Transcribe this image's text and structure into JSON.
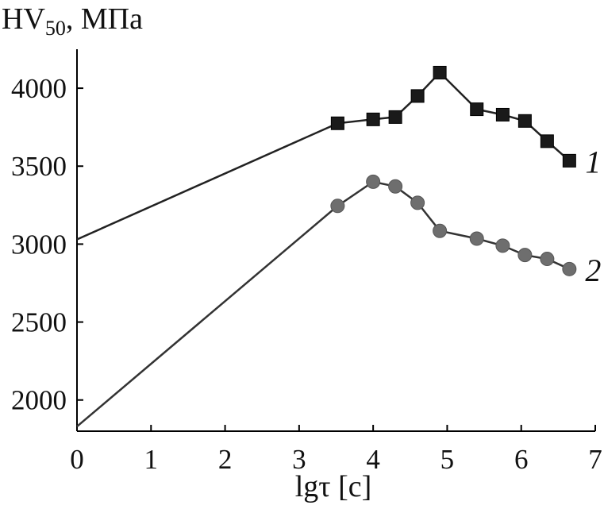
{
  "chart_data": {
    "type": "line",
    "ylabel": {
      "main": "HV",
      "sub": "50",
      "unit": ", МПа"
    },
    "xlabel": "lgτ [c]",
    "xlim": [
      0,
      7
    ],
    "ylim": [
      1800,
      4250
    ],
    "xticks": [
      0,
      1,
      2,
      3,
      4,
      5,
      6,
      7
    ],
    "yticks": [
      2000,
      2500,
      3000,
      3500,
      4000
    ],
    "grid": false,
    "series": [
      {
        "name": "1",
        "marker": "square",
        "color": "#1a1a1a",
        "line_color": "#222222",
        "points": [
          {
            "x": 0,
            "y": 3030,
            "marker": false
          },
          {
            "x": 3.52,
            "y": 3775,
            "marker": true
          },
          {
            "x": 4.0,
            "y": 3800,
            "marker": true
          },
          {
            "x": 4.3,
            "y": 3815,
            "marker": true
          },
          {
            "x": 4.6,
            "y": 3950,
            "marker": true
          },
          {
            "x": 4.9,
            "y": 4100,
            "marker": true
          },
          {
            "x": 5.4,
            "y": 3865,
            "marker": true
          },
          {
            "x": 5.75,
            "y": 3830,
            "marker": true
          },
          {
            "x": 6.05,
            "y": 3790,
            "marker": true
          },
          {
            "x": 6.35,
            "y": 3660,
            "marker": true
          },
          {
            "x": 6.65,
            "y": 3535,
            "marker": true
          }
        ]
      },
      {
        "name": "2",
        "marker": "circle",
        "color": "#6e6e6e",
        "line_color": "#333333",
        "points": [
          {
            "x": 0,
            "y": 1830,
            "marker": false
          },
          {
            "x": 3.52,
            "y": 3245,
            "marker": true
          },
          {
            "x": 4.0,
            "y": 3400,
            "marker": true
          },
          {
            "x": 4.3,
            "y": 3370,
            "marker": true
          },
          {
            "x": 4.6,
            "y": 3265,
            "marker": true
          },
          {
            "x": 4.9,
            "y": 3085,
            "marker": true
          },
          {
            "x": 5.4,
            "y": 3035,
            "marker": true
          },
          {
            "x": 5.75,
            "y": 2990,
            "marker": true
          },
          {
            "x": 6.05,
            "y": 2930,
            "marker": true
          },
          {
            "x": 6.35,
            "y": 2905,
            "marker": true
          },
          {
            "x": 6.65,
            "y": 2840,
            "marker": true
          }
        ]
      }
    ]
  }
}
